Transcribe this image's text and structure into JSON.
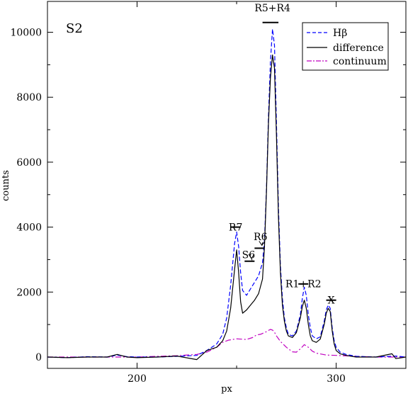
{
  "chart_data": {
    "type": "line",
    "panel_label": "S2",
    "xlabel": "px",
    "ylabel": "counts",
    "xlim": [
      155,
      335
    ],
    "ylim": [
      -350,
      10950
    ],
    "x_ticks": [
      200,
      300
    ],
    "y_ticks": [
      0,
      2000,
      4000,
      6000,
      8000,
      10000
    ],
    "legend_position": "top-right",
    "series": [
      {
        "name": "Hβ",
        "style": "dashed",
        "color": "#0000ff",
        "x": [
          155,
          165,
          175,
          185,
          190,
          195,
          200,
          210,
          220,
          230,
          235,
          240,
          243,
          245,
          247,
          249,
          250,
          251,
          252,
          253,
          255,
          257,
          259,
          261,
          263,
          264,
          265,
          266,
          267,
          268,
          269,
          270,
          271,
          272,
          273,
          274,
          275,
          276,
          278,
          280,
          282,
          283,
          284,
          285,
          286,
          287,
          288,
          290,
          292,
          294,
          295,
          296,
          297,
          298,
          299,
          300,
          302,
          305,
          310,
          320,
          330,
          335
        ],
        "y": [
          0,
          -20,
          10,
          0,
          60,
          10,
          0,
          0,
          20,
          50,
          200,
          400,
          700,
          1200,
          2200,
          3500,
          3850,
          3400,
          2600,
          2050,
          1900,
          2100,
          2300,
          2500,
          2900,
          3600,
          5200,
          7400,
          9100,
          10100,
          9600,
          7200,
          4600,
          2800,
          1800,
          1200,
          900,
          700,
          650,
          800,
          1300,
          1800,
          2150,
          1900,
          1300,
          900,
          650,
          560,
          620,
          1100,
          1450,
          1600,
          1500,
          900,
          500,
          300,
          150,
          80,
          20,
          0,
          30,
          0
        ]
      },
      {
        "name": "difference",
        "style": "solid",
        "color": "#000000",
        "x": [
          155,
          165,
          175,
          185,
          190,
          195,
          200,
          210,
          220,
          230,
          235,
          240,
          243,
          245,
          247,
          249,
          250,
          251,
          252,
          253,
          255,
          257,
          259,
          261,
          263,
          264,
          265,
          266,
          267,
          268,
          269,
          270,
          271,
          272,
          273,
          274,
          275,
          276,
          278,
          280,
          282,
          283,
          284,
          285,
          286,
          287,
          288,
          290,
          292,
          294,
          295,
          296,
          297,
          298,
          299,
          300,
          302,
          305,
          310,
          320,
          328,
          330,
          335
        ],
        "y": [
          0,
          -20,
          0,
          0,
          80,
          0,
          -20,
          0,
          30,
          -80,
          200,
          300,
          500,
          800,
          1500,
          2700,
          3300,
          2600,
          1700,
          1350,
          1450,
          1600,
          1750,
          1950,
          2400,
          3400,
          5100,
          7200,
          8600,
          9300,
          8900,
          6800,
          4300,
          2600,
          1600,
          1100,
          800,
          650,
          600,
          750,
          1200,
          1550,
          1750,
          1500,
          1000,
          650,
          500,
          450,
          550,
          1000,
          1350,
          1500,
          1400,
          800,
          400,
          200,
          100,
          50,
          0,
          0,
          100,
          -50,
          0
        ]
      },
      {
        "name": "continuum",
        "style": "dashdot",
        "color": "#c000c0",
        "x": [
          155,
          180,
          200,
          220,
          230,
          235,
          240,
          243,
          246,
          250,
          255,
          258,
          260,
          262,
          265,
          266,
          267,
          268,
          269,
          270,
          272,
          275,
          278,
          280,
          282,
          284,
          286,
          288,
          290,
          295,
          300,
          310,
          320,
          335
        ],
        "y": [
          0,
          0,
          0,
          40,
          80,
          150,
          300,
          450,
          520,
          560,
          540,
          600,
          680,
          700,
          780,
          820,
          850,
          830,
          760,
          650,
          480,
          300,
          160,
          150,
          250,
          380,
          300,
          180,
          120,
          60,
          50,
          20,
          0,
          0
        ]
      }
    ],
    "annotations": [
      {
        "text": "R5+R4",
        "x": 268,
        "y": 10950,
        "bar_x1": 263,
        "bar_x2": 271,
        "bar_y": 10300
      },
      {
        "text": "R7",
        "x": 249.5,
        "y": 4200,
        "bar_x1": 247,
        "bar_x2": 252,
        "bar_y": 4000
      },
      {
        "text": "R6",
        "x": 262,
        "y": 3900,
        "bar_x1": 259,
        "bar_x2": 264,
        "bar_y": 3350,
        "arrow": true
      },
      {
        "text": "S6",
        "x": 256,
        "y": 3350,
        "bar_x1": 254,
        "bar_x2": 259,
        "bar_y": 2950,
        "arrow": true
      },
      {
        "text": "R1+R2",
        "x": 283.5,
        "y": 2450,
        "bar_x1": 281,
        "bar_x2": 286,
        "bar_y": 2250
      },
      {
        "text": "X",
        "x": 297.5,
        "y": 1950,
        "bar_x1": 295,
        "bar_x2": 300,
        "bar_y": 1750
      }
    ]
  }
}
